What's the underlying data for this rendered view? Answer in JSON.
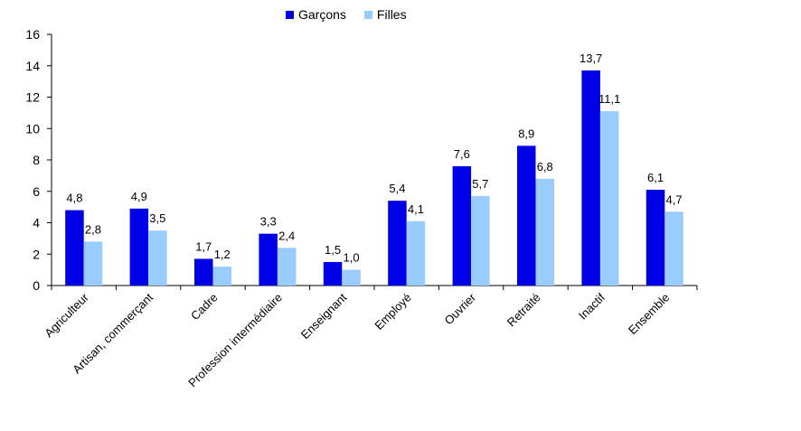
{
  "chart_data": {
    "type": "bar",
    "categories": [
      "Agriculteur",
      "Artisan, commerçant",
      "Cadre",
      "Profession intermédiaire",
      "Enseignant",
      "Employé",
      "Ouvrier",
      "Retraité",
      "Inactif",
      "Ensemble"
    ],
    "series": [
      {
        "name": "Garçons",
        "color": "#0000e6",
        "values": [
          4.8,
          4.9,
          1.7,
          3.3,
          1.5,
          5.4,
          7.6,
          8.9,
          13.7,
          6.1
        ],
        "labels": [
          "4,8",
          "4,9",
          "1,7",
          "3,3",
          "1,5",
          "5,4",
          "7,6",
          "8,9",
          "13,7",
          "6,1"
        ]
      },
      {
        "name": "Filles",
        "color": "#99ccff",
        "values": [
          2.8,
          3.5,
          1.2,
          2.4,
          1.0,
          4.1,
          5.7,
          6.8,
          11.1,
          4.7
        ],
        "labels": [
          "2,8",
          "3,5",
          "1,2",
          "2,4",
          "1,0",
          "4,1",
          "5,7",
          "6,8",
          "11,1",
          "4,7"
        ]
      }
    ],
    "ylim": [
      0,
      16
    ],
    "yticks": [
      0,
      2,
      4,
      6,
      8,
      10,
      12,
      14,
      16
    ],
    "grid": false,
    "legend": "top-center"
  }
}
